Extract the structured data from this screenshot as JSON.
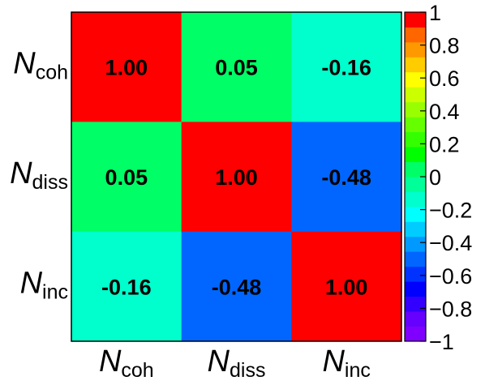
{
  "chart_data": {
    "type": "heatmap",
    "rows": [
      {
        "main": "N",
        "sub": "coh"
      },
      {
        "main": "N",
        "sub": "diss"
      },
      {
        "main": "N",
        "sub": "inc"
      }
    ],
    "columns": [
      {
        "main": "N",
        "sub": "coh"
      },
      {
        "main": "N",
        "sub": "diss"
      },
      {
        "main": "N",
        "sub": "inc"
      }
    ],
    "values": [
      [
        1.0,
        0.05,
        -0.16
      ],
      [
        0.05,
        1.0,
        -0.48
      ],
      [
        -0.16,
        -0.48,
        1.0
      ]
    ],
    "value_labels": [
      [
        "1.00",
        "0.05",
        "-0.16"
      ],
      [
        "0.05",
        "1.00",
        "-0.48"
      ],
      [
        "-0.16",
        "-0.48",
        "1.00"
      ]
    ],
    "zlim": [
      -1,
      1
    ],
    "colorbar": {
      "ticks": [
        {
          "value": 1,
          "label": "1"
        },
        {
          "value": 0.8,
          "label": "0.8"
        },
        {
          "value": 0.6,
          "label": "0.6"
        },
        {
          "value": 0.4,
          "label": "0.4"
        },
        {
          "value": 0.2,
          "label": "0.2"
        },
        {
          "value": 0,
          "label": "0"
        },
        {
          "value": -0.2,
          "label": "−0.2"
        },
        {
          "value": -0.4,
          "label": "−0.4"
        },
        {
          "value": -0.6,
          "label": "−0.6"
        },
        {
          "value": -0.8,
          "label": "−0.8"
        },
        {
          "value": -1,
          "label": "−1"
        }
      ],
      "palette": [
        "#8000ff",
        "#6600ff",
        "#3300ff",
        "#0000ff",
        "#0033ff",
        "#0066ff",
        "#0099ff",
        "#00ccff",
        "#00ffff",
        "#00ffcc",
        "#00ff99",
        "#00ff66",
        "#00ff00",
        "#33ff00",
        "#66ff00",
        "#99ff00",
        "#ccff00",
        "#ffff00",
        "#ffcc00",
        "#ff9900",
        "#ff6600",
        "#ff0000"
      ]
    },
    "grid": false,
    "legend": "right-colorbar"
  }
}
